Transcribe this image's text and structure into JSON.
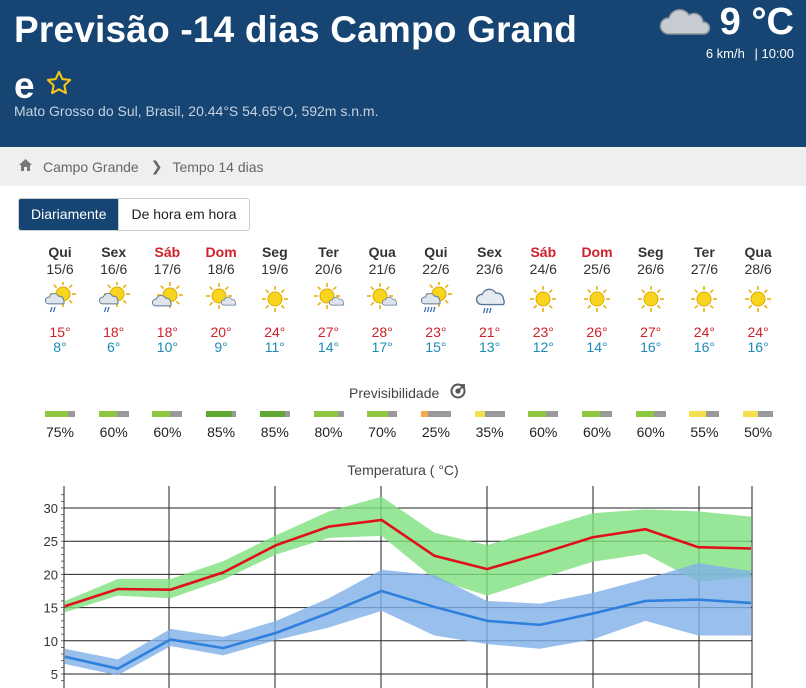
{
  "header": {
    "title": "Previsão -14 dias Campo Grand",
    "title_wrap": "e",
    "location": "Mato Grosso do Sul, Brasil, 20.44°S 54.65°O, 592m s.n.m.",
    "current_temp": "9 °C",
    "current_icon": "cloud-icon",
    "wind": "6 km/h",
    "time": "| 10:00"
  },
  "breadcrumb": {
    "home": "Campo Grande",
    "separator": "❯",
    "current": "Tempo 14 dias"
  },
  "view_toggle": {
    "daily": "Diariamente",
    "hourly": "De hora em hora"
  },
  "days": [
    {
      "name": "Qui",
      "date": "15/6",
      "weekend": false,
      "icon": "sun-cloud-rain-icon",
      "max": "15°",
      "min": "8°"
    },
    {
      "name": "Sex",
      "date": "16/6",
      "weekend": false,
      "icon": "sun-cloud-rain-icon",
      "max": "18°",
      "min": "6°"
    },
    {
      "name": "Sáb",
      "date": "17/6",
      "weekend": true,
      "icon": "sun-cloud-icon",
      "max": "18°",
      "min": "10°"
    },
    {
      "name": "Dom",
      "date": "18/6",
      "weekend": true,
      "icon": "sun-small-cloud-icon",
      "max": "20°",
      "min": "9°"
    },
    {
      "name": "Seg",
      "date": "19/6",
      "weekend": false,
      "icon": "sun-icon",
      "max": "24°",
      "min": "11°"
    },
    {
      "name": "Ter",
      "date": "20/6",
      "weekend": false,
      "icon": "sun-small-cloud-icon",
      "max": "27°",
      "min": "14°"
    },
    {
      "name": "Qua",
      "date": "21/6",
      "weekend": false,
      "icon": "sun-small-cloud-icon",
      "max": "28°",
      "min": "17°"
    },
    {
      "name": "Qui",
      "date": "22/6",
      "weekend": false,
      "icon": "sun-cloud-heavy-rain-icon",
      "max": "23°",
      "min": "15°"
    },
    {
      "name": "Sex",
      "date": "23/6",
      "weekend": false,
      "icon": "cloud-rain-icon",
      "max": "21°",
      "min": "13°"
    },
    {
      "name": "Sáb",
      "date": "24/6",
      "weekend": true,
      "icon": "sun-icon",
      "max": "23°",
      "min": "12°"
    },
    {
      "name": "Dom",
      "date": "25/6",
      "weekend": true,
      "icon": "sun-icon",
      "max": "26°",
      "min": "14°"
    },
    {
      "name": "Seg",
      "date": "26/6",
      "weekend": false,
      "icon": "sun-icon",
      "max": "27°",
      "min": "16°"
    },
    {
      "name": "Ter",
      "date": "27/6",
      "weekend": false,
      "icon": "sun-icon",
      "max": "24°",
      "min": "16°"
    },
    {
      "name": "Qua",
      "date": "28/6",
      "weekend": false,
      "icon": "sun-icon",
      "max": "24°",
      "min": "16°"
    }
  ],
  "predictability": {
    "title": "Previsibilidade",
    "values": [
      "75%",
      "60%",
      "60%",
      "85%",
      "85%",
      "80%",
      "70%",
      "25%",
      "35%",
      "60%",
      "60%",
      "60%",
      "55%",
      "50%"
    ],
    "fractions": [
      0.75,
      0.6,
      0.6,
      0.85,
      0.85,
      0.8,
      0.7,
      0.25,
      0.35,
      0.6,
      0.6,
      0.6,
      0.55,
      0.5
    ],
    "colors": [
      "#8dc63f",
      "#8dc63f",
      "#8dc63f",
      "#5fa832",
      "#5fa832",
      "#8dc63f",
      "#8dc63f",
      "#f7a94b",
      "#f4e04d",
      "#8dc63f",
      "#8dc63f",
      "#8dc63f",
      "#f4e04d",
      "#f4e04d"
    ],
    "rest_color": "#999999"
  },
  "chart_data": {
    "type": "area",
    "title": "Temperatura ( °C)",
    "xlabel": "",
    "ylabel": "",
    "ylim": [
      4,
      32
    ],
    "yticks": [
      5,
      10,
      15,
      20,
      25,
      30
    ],
    "grid": true,
    "x": [
      "15/6",
      "16/6",
      "17/6",
      "18/6",
      "19/6",
      "20/6",
      "21/6",
      "22/6",
      "23/6",
      "24/6",
      "25/6",
      "26/6",
      "27/6",
      "28/6"
    ],
    "series": [
      {
        "color": "#e0101a",
        "values": [
          15.2,
          17.8,
          17.7,
          20.3,
          24.4,
          27.2,
          28.2,
          22.8,
          20.8,
          23.1,
          25.6,
          26.8,
          24.1,
          23.9
        ]
      },
      {
        "color": "#2f7fdc",
        "values": [
          7.6,
          5.8,
          10.2,
          8.9,
          11.2,
          14.2,
          17.5,
          15.1,
          13.0,
          12.4,
          14.1,
          16.0,
          16.2,
          15.7
        ]
      }
    ],
    "bands": [
      {
        "color": "#7ee07e",
        "upper": [
          16.0,
          19.3,
          19.3,
          22.0,
          25.9,
          29.5,
          31.7,
          26.3,
          24.4,
          26.8,
          29.2,
          29.8,
          29.5,
          28.7
        ],
        "lower": [
          14.3,
          16.8,
          16.4,
          19.2,
          23.0,
          25.5,
          25.8,
          19.3,
          16.8,
          19.4,
          21.9,
          23.1,
          18.9,
          19.6
        ]
      },
      {
        "color": "#7fb0e8",
        "upper": [
          8.8,
          7.2,
          11.8,
          10.6,
          13.0,
          16.4,
          20.7,
          19.9,
          16.0,
          15.6,
          17.2,
          19.3,
          21.7,
          20.5
        ],
        "lower": [
          6.5,
          4.8,
          9.2,
          7.8,
          10.1,
          12.0,
          14.5,
          10.8,
          9.5,
          8.8,
          10.2,
          13.0,
          10.8,
          10.8
        ]
      }
    ]
  }
}
